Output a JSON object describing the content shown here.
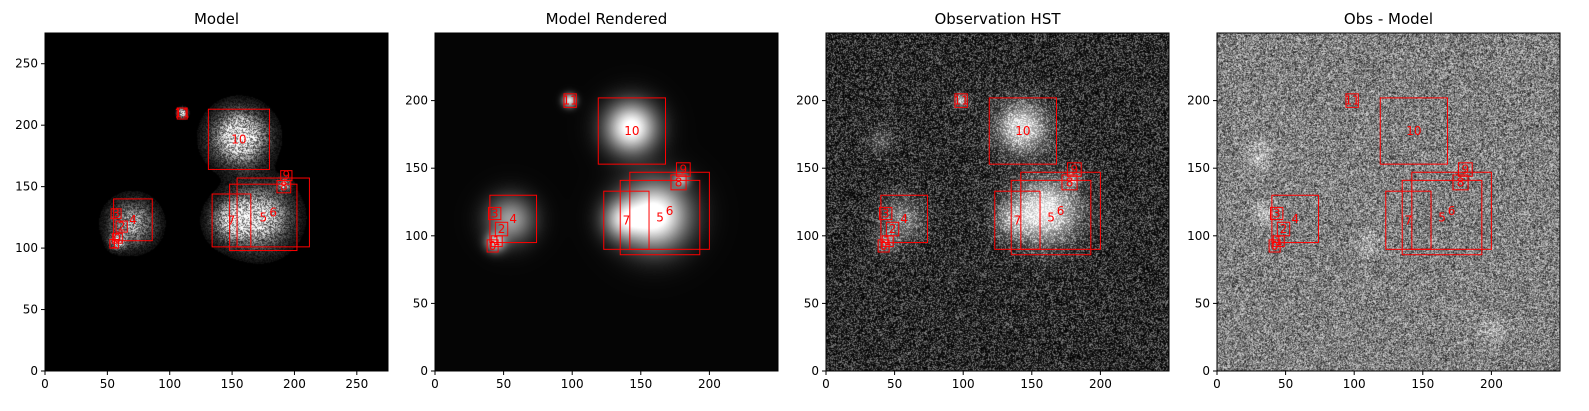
{
  "figure": {
    "background": "#ffffff",
    "box_color": "#ff0000",
    "label_color": "#ff0000"
  },
  "chart_data": [
    {
      "type": "heatmap",
      "title": "Model",
      "colormap": "gray",
      "background_level": "black",
      "xlim": [
        0,
        275
      ],
      "ylim": [
        0,
        275
      ],
      "xticks": [
        0,
        50,
        100,
        150,
        200,
        250
      ],
      "yticks": [
        0,
        50,
        100,
        150,
        200,
        250
      ],
      "boxes": [
        {
          "label": "1",
          "x0": 52,
          "y0": 100,
          "x1": 59,
          "y1": 107
        },
        {
          "label": "0",
          "x0": 54,
          "y0": 104,
          "x1": 62,
          "y1": 112
        },
        {
          "label": "2",
          "x0": 57,
          "y0": 113,
          "x1": 66,
          "y1": 122
        },
        {
          "label": "3",
          "x0": 53,
          "y0": 124,
          "x1": 61,
          "y1": 132
        },
        {
          "label": "4",
          "x0": 55,
          "y0": 106,
          "x1": 86,
          "y1": 140
        },
        {
          "label": "11",
          "x0": 106,
          "y0": 205,
          "x1": 114,
          "y1": 214
        },
        {
          "label": "10",
          "x0": 131,
          "y0": 164,
          "x1": 180,
          "y1": 213
        },
        {
          "label": "7",
          "x0": 134,
          "y0": 101,
          "x1": 165,
          "y1": 144
        },
        {
          "label": "5",
          "x0": 148,
          "y0": 98,
          "x1": 202,
          "y1": 152
        },
        {
          "label": "6",
          "x0": 154,
          "y0": 101,
          "x1": 212,
          "y1": 157
        },
        {
          "label": "8",
          "x0": 186,
          "y0": 145,
          "x1": 197,
          "y1": 155
        },
        {
          "label": "9",
          "x0": 189,
          "y0": 155,
          "x1": 198,
          "y1": 163
        }
      ],
      "sources": [
        {
          "x": 156,
          "y": 190,
          "amp": 1.0,
          "sigma": 14
        },
        {
          "x": 172,
          "y": 125,
          "amp": 0.8,
          "sigma": 16
        },
        {
          "x": 150,
          "y": 122,
          "amp": 0.6,
          "sigma": 11
        },
        {
          "x": 70,
          "y": 120,
          "amp": 0.6,
          "sigma": 12
        },
        {
          "x": 58,
          "y": 105,
          "amp": 0.7,
          "sigma": 4
        },
        {
          "x": 110,
          "y": 210,
          "amp": 0.9,
          "sigma": 2.5
        },
        {
          "x": 192,
          "y": 152,
          "amp": 0.8,
          "sigma": 3
        }
      ]
    },
    {
      "type": "heatmap",
      "title": "Model Rendered",
      "colormap": "gray",
      "background_level": "black",
      "xlim": [
        0,
        250
      ],
      "ylim": [
        0,
        250
      ],
      "xticks": [
        0,
        50,
        100,
        150,
        200
      ],
      "yticks": [
        0,
        50,
        100,
        150,
        200
      ],
      "boxes": [
        {
          "label": "0",
          "x0": 38,
          "y0": 88,
          "x1": 46,
          "y1": 97
        },
        {
          "label": "1",
          "x0": 41,
          "y0": 92,
          "x1": 49,
          "y1": 100
        },
        {
          "label": "2",
          "x0": 44,
          "y0": 100,
          "x1": 53,
          "y1": 110
        },
        {
          "label": "3",
          "x0": 39,
          "y0": 112,
          "x1": 48,
          "y1": 121
        },
        {
          "label": "4",
          "x0": 40,
          "y0": 95,
          "x1": 74,
          "y1": 130
        },
        {
          "label": "11",
          "x0": 94,
          "y0": 195,
          "x1": 103,
          "y1": 205
        },
        {
          "label": "10",
          "x0": 119,
          "y0": 153,
          "x1": 168,
          "y1": 202
        },
        {
          "label": "7",
          "x0": 123,
          "y0": 90,
          "x1": 156,
          "y1": 133
        },
        {
          "label": "5",
          "x0": 135,
          "y0": 86,
          "x1": 193,
          "y1": 141
        },
        {
          "label": "6",
          "x0": 142,
          "y0": 90,
          "x1": 200,
          "y1": 147
        },
        {
          "label": "8",
          "x0": 172,
          "y0": 134,
          "x1": 183,
          "y1": 145
        },
        {
          "label": "9",
          "x0": 176,
          "y0": 144,
          "x1": 186,
          "y1": 154
        }
      ],
      "sources": [
        {
          "x": 143,
          "y": 180,
          "amp": 0.95,
          "sigma": 13
        },
        {
          "x": 160,
          "y": 115,
          "amp": 1.0,
          "sigma": 17
        },
        {
          "x": 136,
          "y": 112,
          "amp": 0.5,
          "sigma": 10
        },
        {
          "x": 55,
          "y": 112,
          "amp": 0.55,
          "sigma": 12
        },
        {
          "x": 44,
          "y": 95,
          "amp": 0.6,
          "sigma": 5
        },
        {
          "x": 98,
          "y": 200,
          "amp": 0.8,
          "sigma": 3.5
        },
        {
          "x": 180,
          "y": 142,
          "amp": 0.5,
          "sigma": 4
        }
      ]
    },
    {
      "type": "heatmap",
      "title": "Observation HST",
      "colormap": "gray",
      "background_level": "noisy",
      "xlim": [
        0,
        250
      ],
      "ylim": [
        0,
        250
      ],
      "xticks": [
        0,
        50,
        100,
        150,
        200
      ],
      "yticks": [
        0,
        50,
        100,
        150,
        200
      ],
      "boxes": [
        {
          "label": "0",
          "x0": 38,
          "y0": 88,
          "x1": 46,
          "y1": 97
        },
        {
          "label": "1",
          "x0": 41,
          "y0": 92,
          "x1": 49,
          "y1": 100
        },
        {
          "label": "2",
          "x0": 44,
          "y0": 100,
          "x1": 53,
          "y1": 110
        },
        {
          "label": "3",
          "x0": 39,
          "y0": 112,
          "x1": 48,
          "y1": 121
        },
        {
          "label": "4",
          "x0": 40,
          "y0": 95,
          "x1": 74,
          "y1": 130
        },
        {
          "label": "11",
          "x0": 94,
          "y0": 195,
          "x1": 103,
          "y1": 205
        },
        {
          "label": "10",
          "x0": 119,
          "y0": 153,
          "x1": 168,
          "y1": 202
        },
        {
          "label": "7",
          "x0": 123,
          "y0": 90,
          "x1": 156,
          "y1": 133
        },
        {
          "label": "5",
          "x0": 135,
          "y0": 86,
          "x1": 193,
          "y1": 141
        },
        {
          "label": "6",
          "x0": 142,
          "y0": 90,
          "x1": 200,
          "y1": 147
        },
        {
          "label": "8",
          "x0": 172,
          "y0": 134,
          "x1": 183,
          "y1": 145
        },
        {
          "label": "9",
          "x0": 176,
          "y0": 144,
          "x1": 186,
          "y1": 154
        }
      ],
      "sources": [
        {
          "x": 143,
          "y": 180,
          "amp": 0.85,
          "sigma": 12
        },
        {
          "x": 160,
          "y": 118,
          "amp": 0.9,
          "sigma": 16
        },
        {
          "x": 136,
          "y": 112,
          "amp": 0.4,
          "sigma": 9
        },
        {
          "x": 55,
          "y": 112,
          "amp": 0.4,
          "sigma": 11
        },
        {
          "x": 44,
          "y": 95,
          "amp": 0.45,
          "sigma": 5
        },
        {
          "x": 98,
          "y": 200,
          "amp": 0.6,
          "sigma": 3.5
        },
        {
          "x": 180,
          "y": 142,
          "amp": 0.45,
          "sigma": 4
        },
        {
          "x": 40,
          "y": 170,
          "amp": 0.25,
          "sigma": 6
        }
      ]
    },
    {
      "type": "heatmap",
      "title": "Obs - Model",
      "colormap": "gray",
      "background_level": "residual",
      "xlim": [
        0,
        250
      ],
      "ylim": [
        0,
        250
      ],
      "xticks": [
        0,
        50,
        100,
        150,
        200
      ],
      "yticks": [
        0,
        50,
        100,
        150,
        200
      ],
      "boxes": [
        {
          "label": "0",
          "x0": 38,
          "y0": 88,
          "x1": 46,
          "y1": 97
        },
        {
          "label": "1",
          "x0": 41,
          "y0": 92,
          "x1": 49,
          "y1": 100
        },
        {
          "label": "2",
          "x0": 44,
          "y0": 100,
          "x1": 53,
          "y1": 110
        },
        {
          "label": "3",
          "x0": 39,
          "y0": 112,
          "x1": 48,
          "y1": 121
        },
        {
          "label": "4",
          "x0": 40,
          "y0": 95,
          "x1": 74,
          "y1": 130
        },
        {
          "label": "11",
          "x0": 94,
          "y0": 195,
          "x1": 103,
          "y1": 205
        },
        {
          "label": "10",
          "x0": 119,
          "y0": 153,
          "x1": 168,
          "y1": 202
        },
        {
          "label": "7",
          "x0": 123,
          "y0": 90,
          "x1": 156,
          "y1": 133
        },
        {
          "label": "5",
          "x0": 135,
          "y0": 86,
          "x1": 193,
          "y1": 141
        },
        {
          "label": "6",
          "x0": 142,
          "y0": 90,
          "x1": 200,
          "y1": 147
        },
        {
          "label": "8",
          "x0": 172,
          "y0": 134,
          "x1": 183,
          "y1": 145
        },
        {
          "label": "9",
          "x0": 176,
          "y0": 144,
          "x1": 186,
          "y1": 154
        }
      ],
      "sources": [
        {
          "x": 35,
          "y": 115,
          "amp": 0.35,
          "sigma": 6
        },
        {
          "x": 30,
          "y": 160,
          "amp": 0.3,
          "sigma": 7
        },
        {
          "x": 110,
          "y": 95,
          "amp": 0.25,
          "sigma": 6
        },
        {
          "x": 200,
          "y": 30,
          "amp": 0.25,
          "sigma": 7
        }
      ]
    }
  ]
}
